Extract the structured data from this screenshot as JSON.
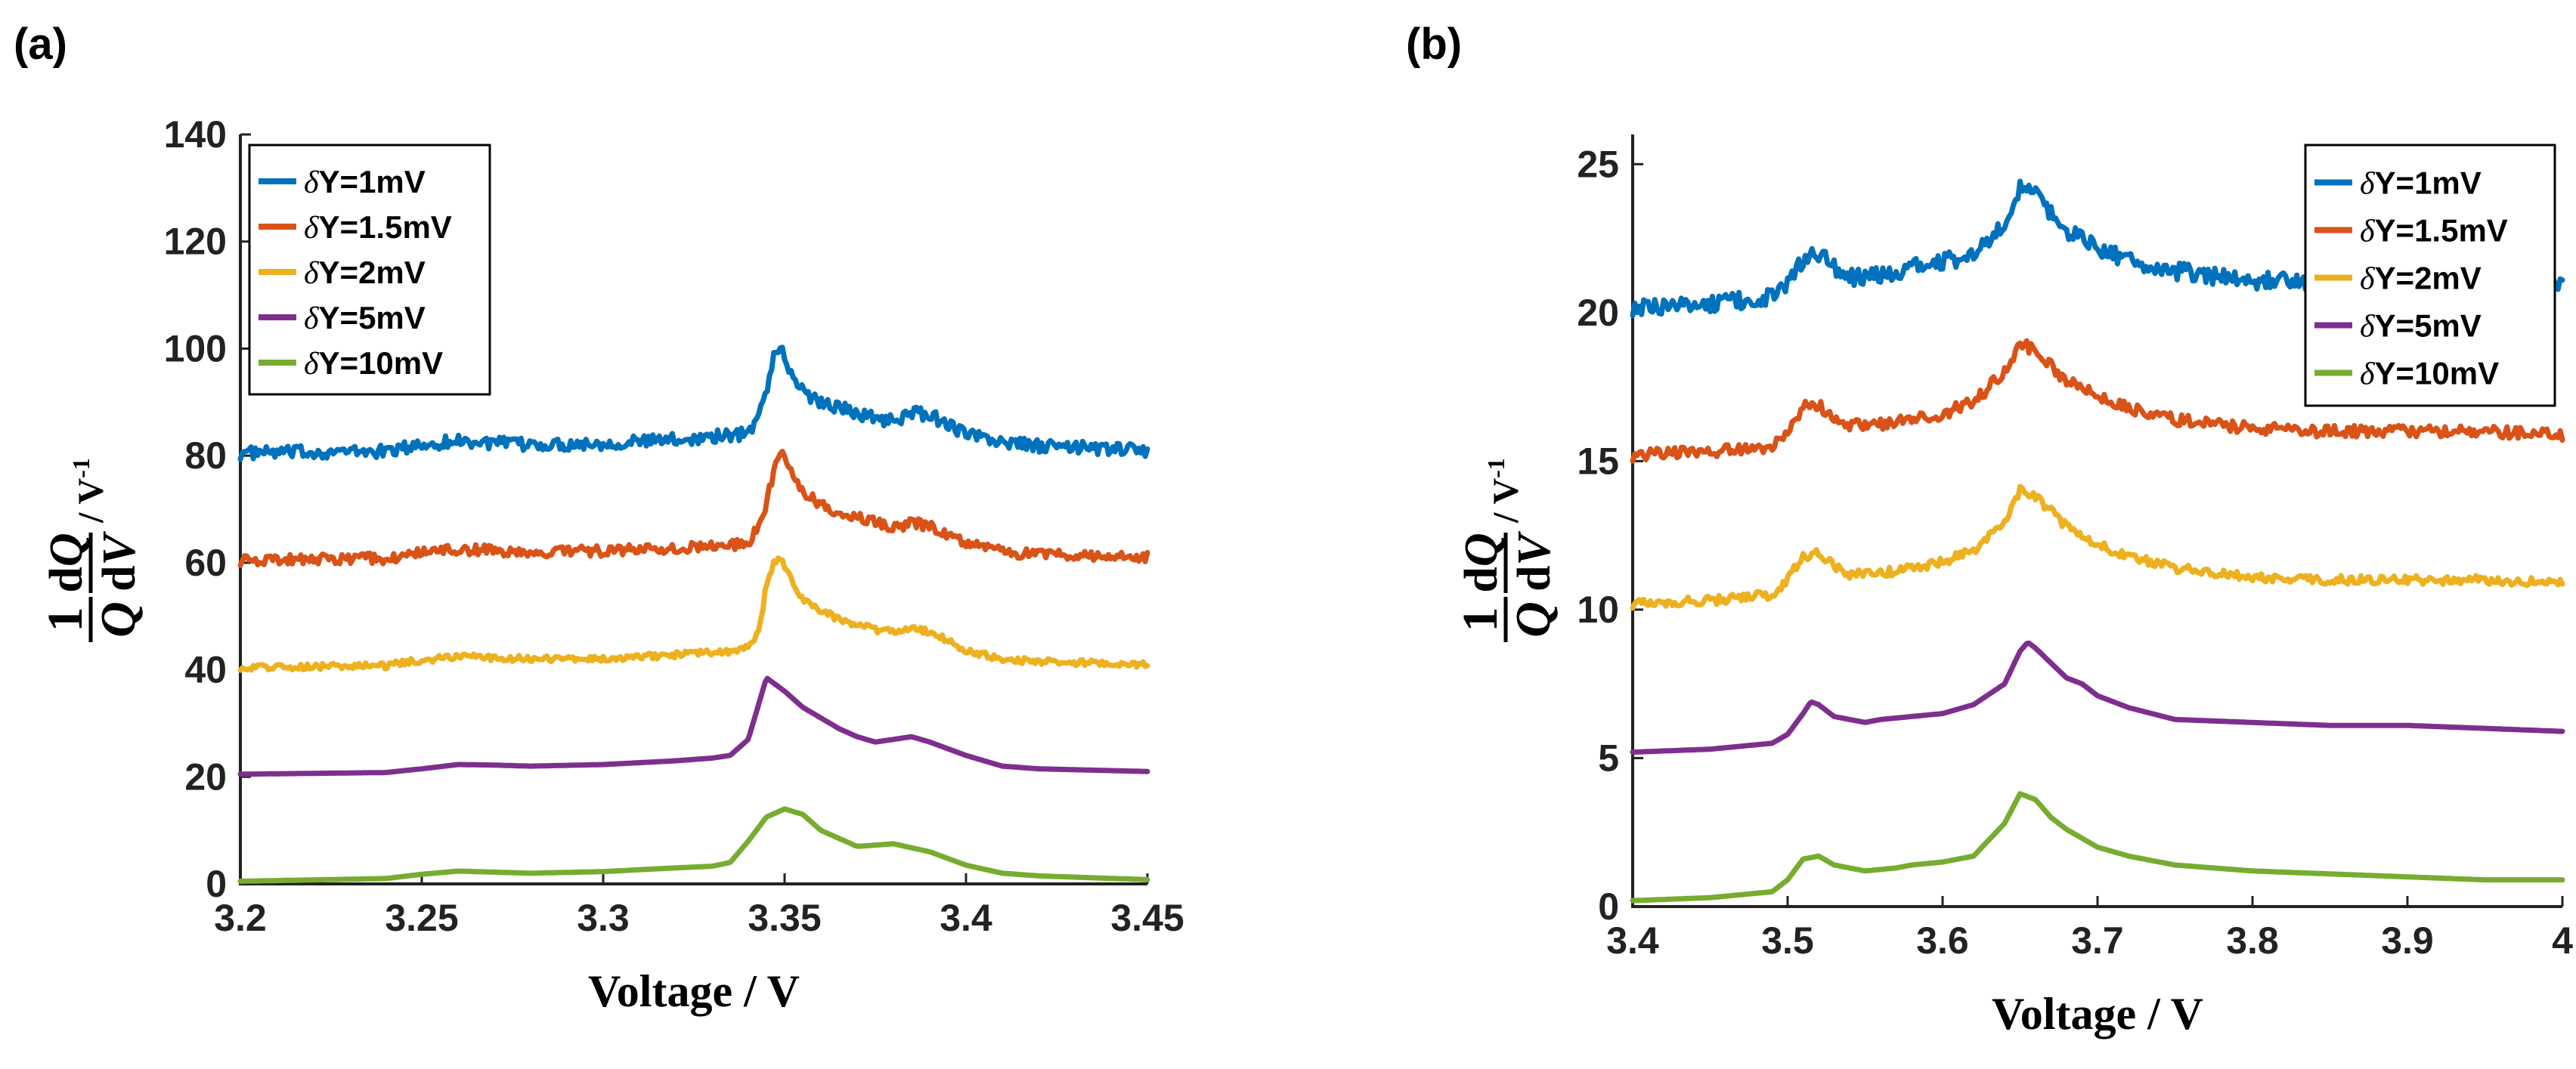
{
  "figure": {
    "panels": [
      {
        "label": "(a)"
      },
      {
        "label": "(b)"
      }
    ],
    "ylabel": {
      "numerator_1": "1",
      "denominator_Q": "Q",
      "numerator_dQ_d": "d",
      "numerator_dQ_Q": "Q",
      "denominator_dV_d": "d",
      "denominator_dV_V": "V",
      "unit": "/ V",
      "unit_exp": "-1"
    }
  },
  "colors": {
    "blue": "#0072BD",
    "orange": "#D95319",
    "yellow": "#EDB120",
    "purple": "#7E2F8E",
    "green": "#77AC30"
  },
  "chart_data": [
    {
      "type": "line",
      "panel": "(a)",
      "title": "",
      "xlabel": "Voltage / V",
      "ylabel": "1/Q dQ/dV / V-1",
      "xlim": [
        3.2,
        3.45
      ],
      "ylim": [
        0,
        140
      ],
      "xticks": [
        "3.2",
        "3.25",
        "3.3",
        "3.35",
        "3.4",
        "3.45"
      ],
      "yticks": [
        "0",
        "20",
        "40",
        "60",
        "80",
        "100",
        "120",
        "140"
      ],
      "legend_position": "top-left",
      "series": [
        {
          "name": "δY=1mV",
          "label_prefix": "δ",
          "label_rest": "Y=1mV",
          "color": "#0072BD",
          "noise": 1.2,
          "x": [
            3.2,
            3.24,
            3.25,
            3.26,
            3.27,
            3.28,
            3.3,
            3.32,
            3.338,
            3.342,
            3.345,
            3.347,
            3.349,
            3.352,
            3.355,
            3.36,
            3.365,
            3.37,
            3.375,
            3.38,
            3.385,
            3.39,
            3.395,
            3.4,
            3.41,
            3.42,
            3.45
          ],
          "y": [
            80.5,
            80.8,
            82,
            82.8,
            82.3,
            82,
            82.3,
            83,
            84,
            86,
            92,
            99,
            100,
            95,
            92,
            90,
            89,
            88,
            87,
            86.5,
            88,
            87.5,
            86,
            84,
            82.5,
            81.8,
            81
          ]
        },
        {
          "name": "δY=1.5mV",
          "label_prefix": "δ",
          "label_rest": "Y=1.5mV",
          "color": "#D95319",
          "noise": 1.0,
          "x": [
            3.2,
            3.24,
            3.25,
            3.26,
            3.27,
            3.28,
            3.3,
            3.32,
            3.335,
            3.34,
            3.344,
            3.347,
            3.349,
            3.352,
            3.355,
            3.36,
            3.365,
            3.37,
            3.375,
            3.38,
            3.385,
            3.39,
            3.395,
            3.4,
            3.41,
            3.42,
            3.45
          ],
          "y": [
            60.5,
            60.8,
            61.8,
            62.5,
            62.3,
            62,
            62.2,
            62.8,
            63.2,
            63.8,
            68,
            77,
            80.5,
            77,
            73,
            71,
            69.5,
            68.5,
            67.5,
            66.5,
            67.5,
            66.8,
            65,
            63.5,
            62,
            61.5,
            61
          ]
        },
        {
          "name": "δY=2mV",
          "label_prefix": "δ",
          "label_rest": "Y=2mV",
          "color": "#EDB120",
          "noise": 0.6,
          "x": [
            3.2,
            3.24,
            3.25,
            3.26,
            3.27,
            3.28,
            3.3,
            3.32,
            3.335,
            3.34,
            3.343,
            3.345,
            3.347,
            3.349,
            3.352,
            3.355,
            3.36,
            3.365,
            3.37,
            3.375,
            3.38,
            3.385,
            3.39,
            3.395,
            3.4,
            3.41,
            3.42,
            3.45
          ],
          "y": [
            40.5,
            40.8,
            41.8,
            42.5,
            42.3,
            42,
            42.2,
            42.8,
            43.5,
            44.5,
            47,
            56,
            60,
            60.5,
            57,
            53,
            51,
            49.5,
            48.5,
            47.5,
            47,
            48,
            47,
            45.5,
            43.5,
            42,
            41.5,
            41
          ]
        },
        {
          "name": "δY=5mV",
          "label_prefix": "δ",
          "label_rest": "Y=5mV",
          "color": "#7E2F8E",
          "noise": 0,
          "x": [
            3.2,
            3.24,
            3.25,
            3.26,
            3.27,
            3.28,
            3.3,
            3.32,
            3.33,
            3.335,
            3.34,
            3.345,
            3.35,
            3.355,
            3.36,
            3.365,
            3.37,
            3.375,
            3.38,
            3.385,
            3.39,
            3.4,
            3.41,
            3.42,
            3.45
          ],
          "y": [
            20.5,
            20.8,
            21.5,
            22.3,
            22.2,
            22,
            22.3,
            23,
            23.5,
            24,
            27,
            38.5,
            36,
            33,
            31,
            29,
            27.5,
            26.5,
            27,
            27.5,
            26.5,
            24,
            22,
            21.5,
            21
          ]
        },
        {
          "name": "δY=10mV",
          "label_prefix": "δ",
          "label_rest": "Y=10mV",
          "color": "#77AC30",
          "noise": 0,
          "x": [
            3.2,
            3.24,
            3.25,
            3.26,
            3.27,
            3.28,
            3.3,
            3.32,
            3.33,
            3.335,
            3.34,
            3.345,
            3.35,
            3.355,
            3.36,
            3.365,
            3.37,
            3.38,
            3.39,
            3.4,
            3.41,
            3.42,
            3.45
          ],
          "y": [
            0.5,
            1,
            1.8,
            2.4,
            2.2,
            2,
            2.3,
            3,
            3.3,
            4,
            8,
            12.5,
            14,
            13,
            10,
            8.5,
            7,
            7.5,
            6,
            3.5,
            2,
            1.5,
            0.8
          ]
        }
      ]
    },
    {
      "type": "line",
      "panel": "(b)",
      "title": "",
      "xlabel": "Voltage / V",
      "ylabel": "1/Q dQ/dV / V-1",
      "xlim": [
        3.4,
        4.0
      ],
      "ylim": [
        0,
        26
      ],
      "xticks": [
        "3.4",
        "3.5",
        "3.6",
        "3.7",
        "3.8",
        "3.9",
        "4"
      ],
      "yticks": [
        "0",
        "5",
        "10",
        "15",
        "20",
        "25"
      ],
      "legend_position": "top-right",
      "series": [
        {
          "name": "δY=1mV",
          "label_prefix": "δ",
          "label_rest": "Y=1mV",
          "color": "#0072BD",
          "noise": 0.3,
          "x": [
            3.4,
            3.45,
            3.49,
            3.5,
            3.51,
            3.52,
            3.53,
            3.54,
            3.55,
            3.57,
            3.6,
            3.62,
            3.64,
            3.65,
            3.66,
            3.67,
            3.68,
            3.7,
            3.72,
            3.75,
            3.8,
            3.85,
            3.9,
            3.95,
            4.0
          ],
          "y": [
            20.2,
            20.3,
            20.5,
            21,
            21.8,
            22,
            21.5,
            21.2,
            21.2,
            21.4,
            21.7,
            22,
            23,
            24.2,
            24,
            23.3,
            22.8,
            22.2,
            21.8,
            21.4,
            21.1,
            21,
            21,
            21,
            21
          ]
        },
        {
          "name": "δY=1.5mV",
          "label_prefix": "δ",
          "label_rest": "Y=1.5mV",
          "color": "#D95319",
          "noise": 0.2,
          "x": [
            3.4,
            3.45,
            3.49,
            3.5,
            3.51,
            3.52,
            3.53,
            3.54,
            3.55,
            3.57,
            3.6,
            3.62,
            3.64,
            3.65,
            3.66,
            3.67,
            3.68,
            3.7,
            3.72,
            3.75,
            3.8,
            3.85,
            3.9,
            3.95,
            4.0
          ],
          "y": [
            15.2,
            15.3,
            15.5,
            16,
            16.8,
            16.9,
            16.5,
            16.2,
            16.2,
            16.3,
            16.6,
            17,
            18,
            19,
            18.7,
            18.2,
            17.7,
            17.2,
            16.8,
            16.4,
            16.1,
            16,
            16,
            16,
            15.9
          ]
        },
        {
          "name": "δY=2mV",
          "label_prefix": "δ",
          "label_rest": "Y=2mV",
          "color": "#EDB120",
          "noise": 0.15,
          "x": [
            3.4,
            3.45,
            3.49,
            3.5,
            3.51,
            3.52,
            3.53,
            3.54,
            3.55,
            3.57,
            3.6,
            3.62,
            3.64,
            3.65,
            3.66,
            3.67,
            3.68,
            3.7,
            3.72,
            3.75,
            3.8,
            3.85,
            3.9,
            3.95,
            4.0
          ],
          "y": [
            10.2,
            10.3,
            10.5,
            11,
            11.8,
            11.9,
            11.5,
            11.2,
            11.2,
            11.3,
            11.6,
            12,
            13,
            14,
            13.8,
            13.3,
            12.8,
            12.2,
            11.8,
            11.4,
            11.1,
            11,
            11,
            11,
            10.9
          ]
        },
        {
          "name": "δY=5mV",
          "label_prefix": "δ",
          "label_rest": "Y=5mV",
          "color": "#7E2F8E",
          "noise": 0,
          "x": [
            3.4,
            3.45,
            3.49,
            3.5,
            3.51,
            3.515,
            3.52,
            3.53,
            3.54,
            3.55,
            3.56,
            3.58,
            3.6,
            3.62,
            3.64,
            3.65,
            3.655,
            3.66,
            3.67,
            3.68,
            3.69,
            3.7,
            3.72,
            3.75,
            3.8,
            3.85,
            3.9,
            3.95,
            4.0
          ],
          "y": [
            5.2,
            5.3,
            5.5,
            5.8,
            6.5,
            6.9,
            6.8,
            6.4,
            6.3,
            6.2,
            6.3,
            6.4,
            6.5,
            6.8,
            7.5,
            8.6,
            8.9,
            8.7,
            8.2,
            7.7,
            7.5,
            7.1,
            6.7,
            6.3,
            6.2,
            6.1,
            6.1,
            6.0,
            5.9
          ]
        },
        {
          "name": "δY=10mV",
          "label_prefix": "δ",
          "label_rest": "Y=10mV",
          "color": "#77AC30",
          "noise": 0,
          "x": [
            3.4,
            3.45,
            3.49,
            3.5,
            3.51,
            3.52,
            3.53,
            3.55,
            3.57,
            3.58,
            3.6,
            3.62,
            3.64,
            3.65,
            3.66,
            3.67,
            3.68,
            3.7,
            3.72,
            3.75,
            3.8,
            3.85,
            3.9,
            3.95,
            4.0
          ],
          "y": [
            0.2,
            0.3,
            0.5,
            0.9,
            1.6,
            1.7,
            1.4,
            1.2,
            1.3,
            1.4,
            1.5,
            1.7,
            2.8,
            3.8,
            3.6,
            3.0,
            2.6,
            2.0,
            1.7,
            1.4,
            1.2,
            1.1,
            1.0,
            0.9,
            0.9
          ]
        }
      ]
    }
  ]
}
